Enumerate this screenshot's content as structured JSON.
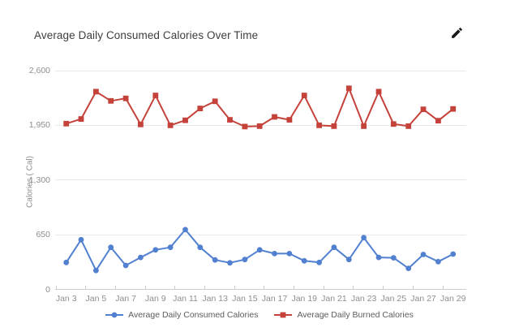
{
  "header": {
    "title": "Average Daily Consumed Calories Over Time"
  },
  "chart_data": {
    "type": "line",
    "title": "Average Daily Consumed Calories Over Time",
    "xlabel": "",
    "ylabel": "Calories ( Cal)",
    "ylim": [
      0,
      2600
    ],
    "grid": "horizontal",
    "legend_position": "bottom",
    "y_ticks": [
      {
        "value": 0,
        "label": "0"
      },
      {
        "value": 650,
        "label": "650"
      },
      {
        "value": 1300,
        "label": "1,300"
      },
      {
        "value": 1950,
        "label": "1,950"
      },
      {
        "value": 2600,
        "label": "2,600"
      }
    ],
    "categories": [
      "Jan 3",
      "Jan 4",
      "Jan 5",
      "Jan 6",
      "Jan 7",
      "Jan 8",
      "Jan 9",
      "Jan 10",
      "Jan 11",
      "Jan 12",
      "Jan 13",
      "Jan 14",
      "Jan 15",
      "Jan 16",
      "Jan 17",
      "Jan 18",
      "Jan 19",
      "Jan 20",
      "Jan 21",
      "Jan 22",
      "Jan 23",
      "Jan 24",
      "Jan 25",
      "Jan 26",
      "Jan 27",
      "Jan 28",
      "Jan 29"
    ],
    "x_tick_labels": [
      "Jan 3",
      "Jan 5",
      "Jan 7",
      "Jan 9",
      "Jan 11",
      "Jan 13",
      "Jan 15",
      "Jan 17",
      "Jan 19",
      "Jan 21",
      "Jan 23",
      "Jan 25",
      "Jan 27",
      "Jan 29"
    ],
    "series": [
      {
        "name": "Average Daily Consumed Calories",
        "color": "#5280d0",
        "marker": "circle",
        "values": [
          320,
          590,
          225,
          500,
          285,
          380,
          470,
          500,
          710,
          500,
          350,
          315,
          355,
          470,
          425,
          425,
          340,
          320,
          500,
          355,
          615,
          380,
          375,
          250,
          415,
          330,
          420
        ]
      },
      {
        "name": "Average Daily Burned Calories",
        "color": "#c5423b",
        "marker": "square",
        "values": [
          1970,
          2025,
          2350,
          2240,
          2270,
          1960,
          2305,
          1950,
          2010,
          2150,
          2235,
          2015,
          1935,
          1940,
          2050,
          2015,
          2305,
          1950,
          1940,
          2390,
          1940,
          2350,
          1965,
          1940,
          2140,
          2005,
          2145
        ]
      }
    ]
  },
  "legend": {
    "items": [
      {
        "label": "Average Daily Consumed Calories",
        "color": "#5280d0",
        "shape": "circle"
      },
      {
        "label": "Average Daily Burned Calories",
        "color": "#c5423b",
        "shape": "square"
      }
    ]
  }
}
